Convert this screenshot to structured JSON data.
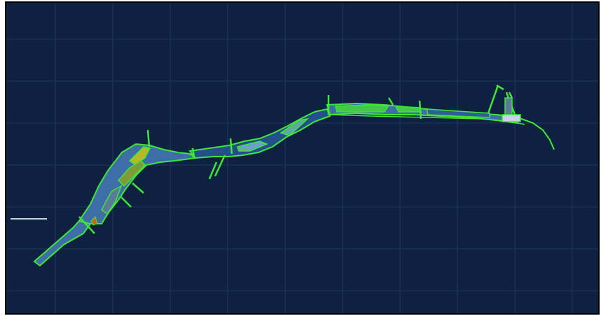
{
  "viewport": {
    "title": "",
    "background_color": "#0f2140",
    "border_color": "#000000",
    "grid_color": "#1f3760"
  },
  "drawing": {
    "outline_color": "#3ee63a",
    "fill_blue": "#3d6ea8",
    "fill_dark_blue": "#23508a",
    "fill_olive": "#7f9a3a",
    "fill_yellow": "#b6b82a",
    "fill_orange": "#c46a1f",
    "fill_gray_blue": "#5a7c99",
    "crosshair_color": "#c8d3e6",
    "crosshair_icon": "crosshair-line-icon"
  }
}
